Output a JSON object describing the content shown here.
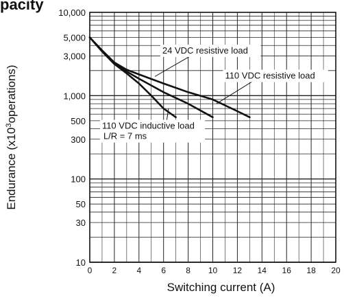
{
  "page": {
    "title_fragment": "pacity"
  },
  "chart_data": {
    "type": "line",
    "title": "",
    "xlabel": "Switching current (A)",
    "ylabel_prefix": "Endurance (x10",
    "ylabel_sup": "3",
    "ylabel_suffix": "operations)",
    "x_scale": "linear",
    "y_scale": "log",
    "xlim": [
      0,
      20
    ],
    "ylim": [
      10,
      10000
    ],
    "grid": true,
    "x_ticks": [
      0,
      2,
      4,
      6,
      8,
      10,
      12,
      14,
      16,
      18,
      20
    ],
    "y_ticks": [
      {
        "value": 10,
        "label": "10"
      },
      {
        "value": 30,
        "label": "30"
      },
      {
        "value": 50,
        "label": "50"
      },
      {
        "value": 100,
        "label": "100"
      },
      {
        "value": 300,
        "label": "300"
      },
      {
        "value": 500,
        "label": "500"
      },
      {
        "value": 1000,
        "label": "1,000"
      },
      {
        "value": 3000,
        "label": "3,000"
      },
      {
        "value": 5000,
        "label": "5,000"
      },
      {
        "value": 10000,
        "label": "10,000"
      }
    ],
    "series": [
      {
        "name": "24 VDC resistive load",
        "x": [
          0,
          1,
          2,
          3,
          4,
          6,
          8,
          10,
          12,
          13
        ],
        "y": [
          5000,
          3500,
          2500,
          2050,
          1800,
          1400,
          1100,
          900,
          650,
          550
        ]
      },
      {
        "name": "110 VDC resistive load",
        "x": [
          0,
          1,
          2,
          3,
          4,
          6,
          8,
          10
        ],
        "y": [
          5000,
          3400,
          2400,
          1950,
          1600,
          1100,
          800,
          550
        ]
      },
      {
        "name": "110 VDC inductive load L/R = 7 ms",
        "label_lines": [
          "110 VDC inductive load",
          "L/R = 7 ms"
        ],
        "x": [
          0,
          1,
          2,
          3,
          4,
          5,
          6,
          7
        ],
        "y": [
          5000,
          3400,
          2400,
          1850,
          1400,
          1000,
          700,
          550
        ]
      }
    ],
    "annotations": [
      {
        "text": "24 VDC resistive load",
        "series": 0,
        "label_at": [
          5.9,
          3200
        ],
        "points_to": [
          5.3,
          1700
        ]
      },
      {
        "text": "110 VDC resistive load",
        "series": 1,
        "label_at": [
          11.0,
          1600
        ],
        "points_to": [
          10.3,
          800
        ]
      },
      {
        "text": "110 VDC inductive load",
        "text2": "L/R = 7 ms",
        "series": 2,
        "label_at": [
          1.0,
          400
        ],
        "points_to": [
          6.4,
          700
        ]
      }
    ]
  }
}
